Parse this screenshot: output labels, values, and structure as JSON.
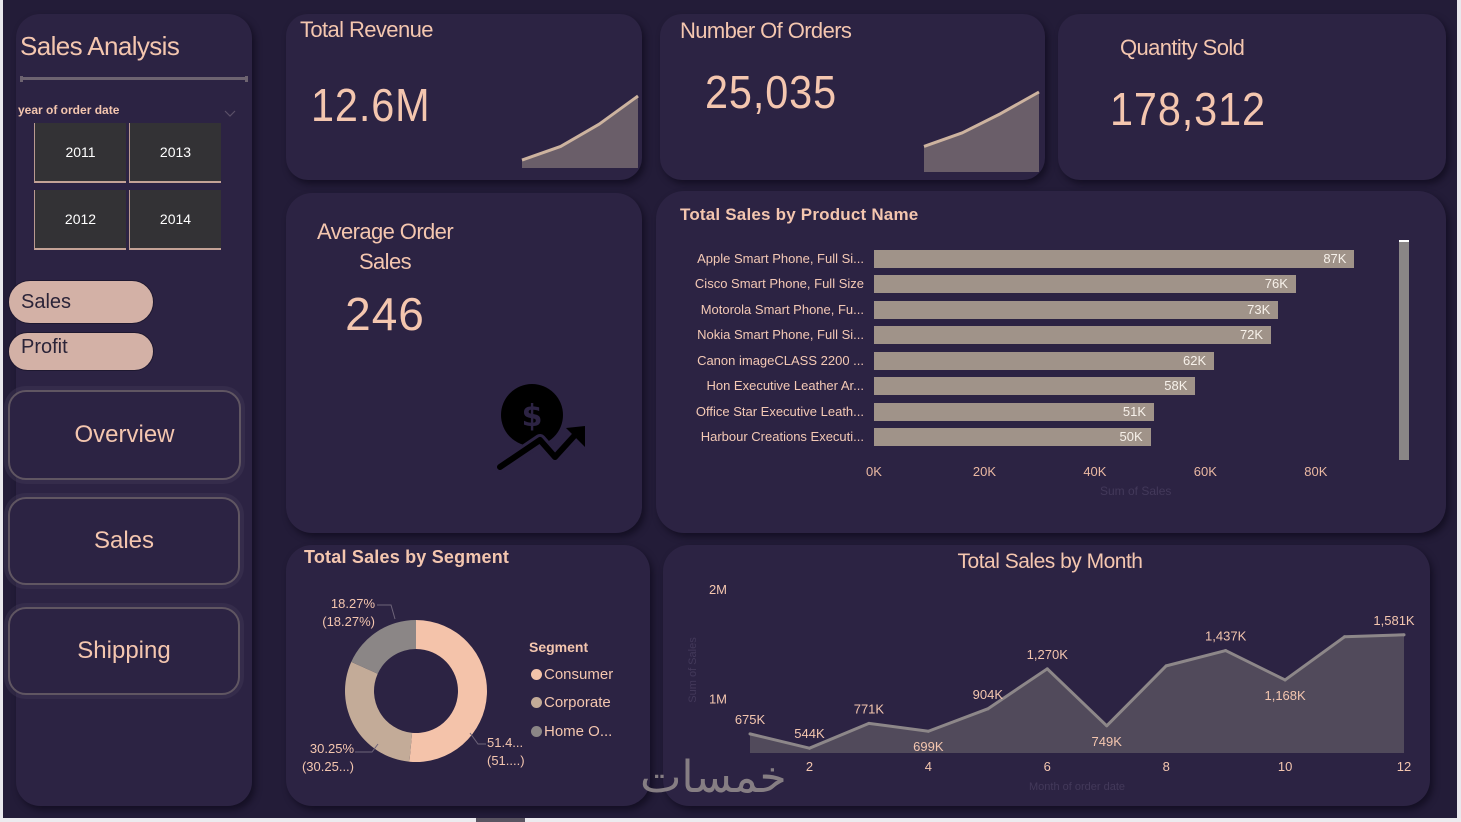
{
  "sidebar": {
    "title": "Sales Analysis",
    "slicer": {
      "label": "year of order date",
      "options": [
        "2011",
        "2012",
        "2013",
        "2014"
      ]
    },
    "measure_buttons": [
      {
        "label": "Sales"
      },
      {
        "label": "Profit"
      }
    ],
    "nav": [
      {
        "label": "Overview"
      },
      {
        "label": "Sales"
      },
      {
        "label": "Shipping"
      }
    ]
  },
  "kpis": {
    "total_revenue": {
      "title": "Total Revenue",
      "value": "12.6M",
      "trend_relative": [
        0.11,
        0.3,
        0.61,
        1.0
      ]
    },
    "number_of_orders": {
      "title": "Number Of Orders",
      "value": "25,035",
      "trend_relative": [
        0.32,
        0.49,
        0.73,
        1.0
      ]
    },
    "quantity_sold": {
      "title": "Quantity Sold",
      "value": "178,312"
    },
    "average_order_sales": {
      "title_line1": "Average Order",
      "title_line2": "Sales",
      "value": "246",
      "icon": "money-growth-icon"
    }
  },
  "colors": {
    "accent_text": "#f4c6af",
    "card": "#2c2343",
    "background": "#231c38",
    "bar": "#a09389",
    "area_fill": "#514a5b",
    "area_line": "#8d8789",
    "sparkline_fill": "#6a5e69",
    "sparkline_line": "#cdb39f",
    "pill": "#d3b1a6"
  },
  "watermark": "خمسات",
  "chart_data": [
    {
      "type": "bar",
      "orientation": "horizontal",
      "title": "Total Sales by Product Name",
      "categories": [
        "Apple Smart Phone, Full Si...",
        "Cisco Smart Phone, Full Size",
        "Motorola Smart Phone, Fu...",
        "Nokia Smart Phone, Full Si...",
        "Canon imageCLASS 2200 ...",
        "Hon Executive Leather Ar...",
        "Office Star Executive Leath...",
        "Harbour Creations Executi..."
      ],
      "values": [
        87000,
        76400,
        73200,
        71900,
        61600,
        58200,
        50700,
        50100
      ],
      "data_labels": [
        "87K",
        "76K",
        "73K",
        "72K",
        "62K",
        "58K",
        "51K",
        "50K"
      ],
      "xticks": [
        0,
        20000,
        40000,
        60000,
        80000
      ],
      "xtick_labels": [
        "0K",
        "20K",
        "40K",
        "60K",
        "80K"
      ],
      "xlabel": "Sum of Sales",
      "ylabel": "",
      "xlim": [
        0,
        88000
      ],
      "grid": false
    },
    {
      "type": "pie",
      "variant": "donut",
      "title": "Total Sales by Segment",
      "categories": [
        "Consumer",
        "Corporate",
        "Home Office"
      ],
      "legend_title": "Segment",
      "legend_labels": [
        "Consumer",
        "Corporate",
        "Home O..."
      ],
      "legend_position": "right",
      "values_pct": [
        51.48,
        30.25,
        18.27
      ],
      "data_labels": [
        [
          "51.4...",
          "(51....)"
        ],
        [
          "30.25%",
          "(30.25...)"
        ],
        [
          "18.27%",
          "(18.27%)"
        ]
      ],
      "colors": [
        "#f4c3aa",
        "#c3ab98",
        "#8b8686"
      ]
    },
    {
      "type": "area",
      "title": "Total Sales by Month",
      "x": [
        1,
        2,
        3,
        4,
        5,
        6,
        7,
        8,
        9,
        10,
        11,
        12
      ],
      "values": [
        675000,
        544000,
        771000,
        699000,
        904000,
        1270000,
        749000,
        1297000,
        1437000,
        1168000,
        1563000,
        1581000
      ],
      "data_labels": [
        "675K",
        "544K",
        "771K",
        "699K",
        "904K",
        "1,270K",
        "749K",
        null,
        "1,437K",
        "1,168K",
        null,
        "1,581K"
      ],
      "xticks": [
        2,
        4,
        6,
        8,
        10,
        12
      ],
      "xtick_labels": [
        "2",
        "4",
        "6",
        "8",
        "10",
        "12"
      ],
      "yticks": [
        1000000,
        2000000
      ],
      "ytick_labels": [
        "1M",
        "2M"
      ],
      "xlabel": "Month of order date",
      "ylabel": "Sum of Sales",
      "xlim": [
        1,
        12
      ],
      "ylim": [
        500000,
        2000000
      ],
      "grid": false
    }
  ]
}
